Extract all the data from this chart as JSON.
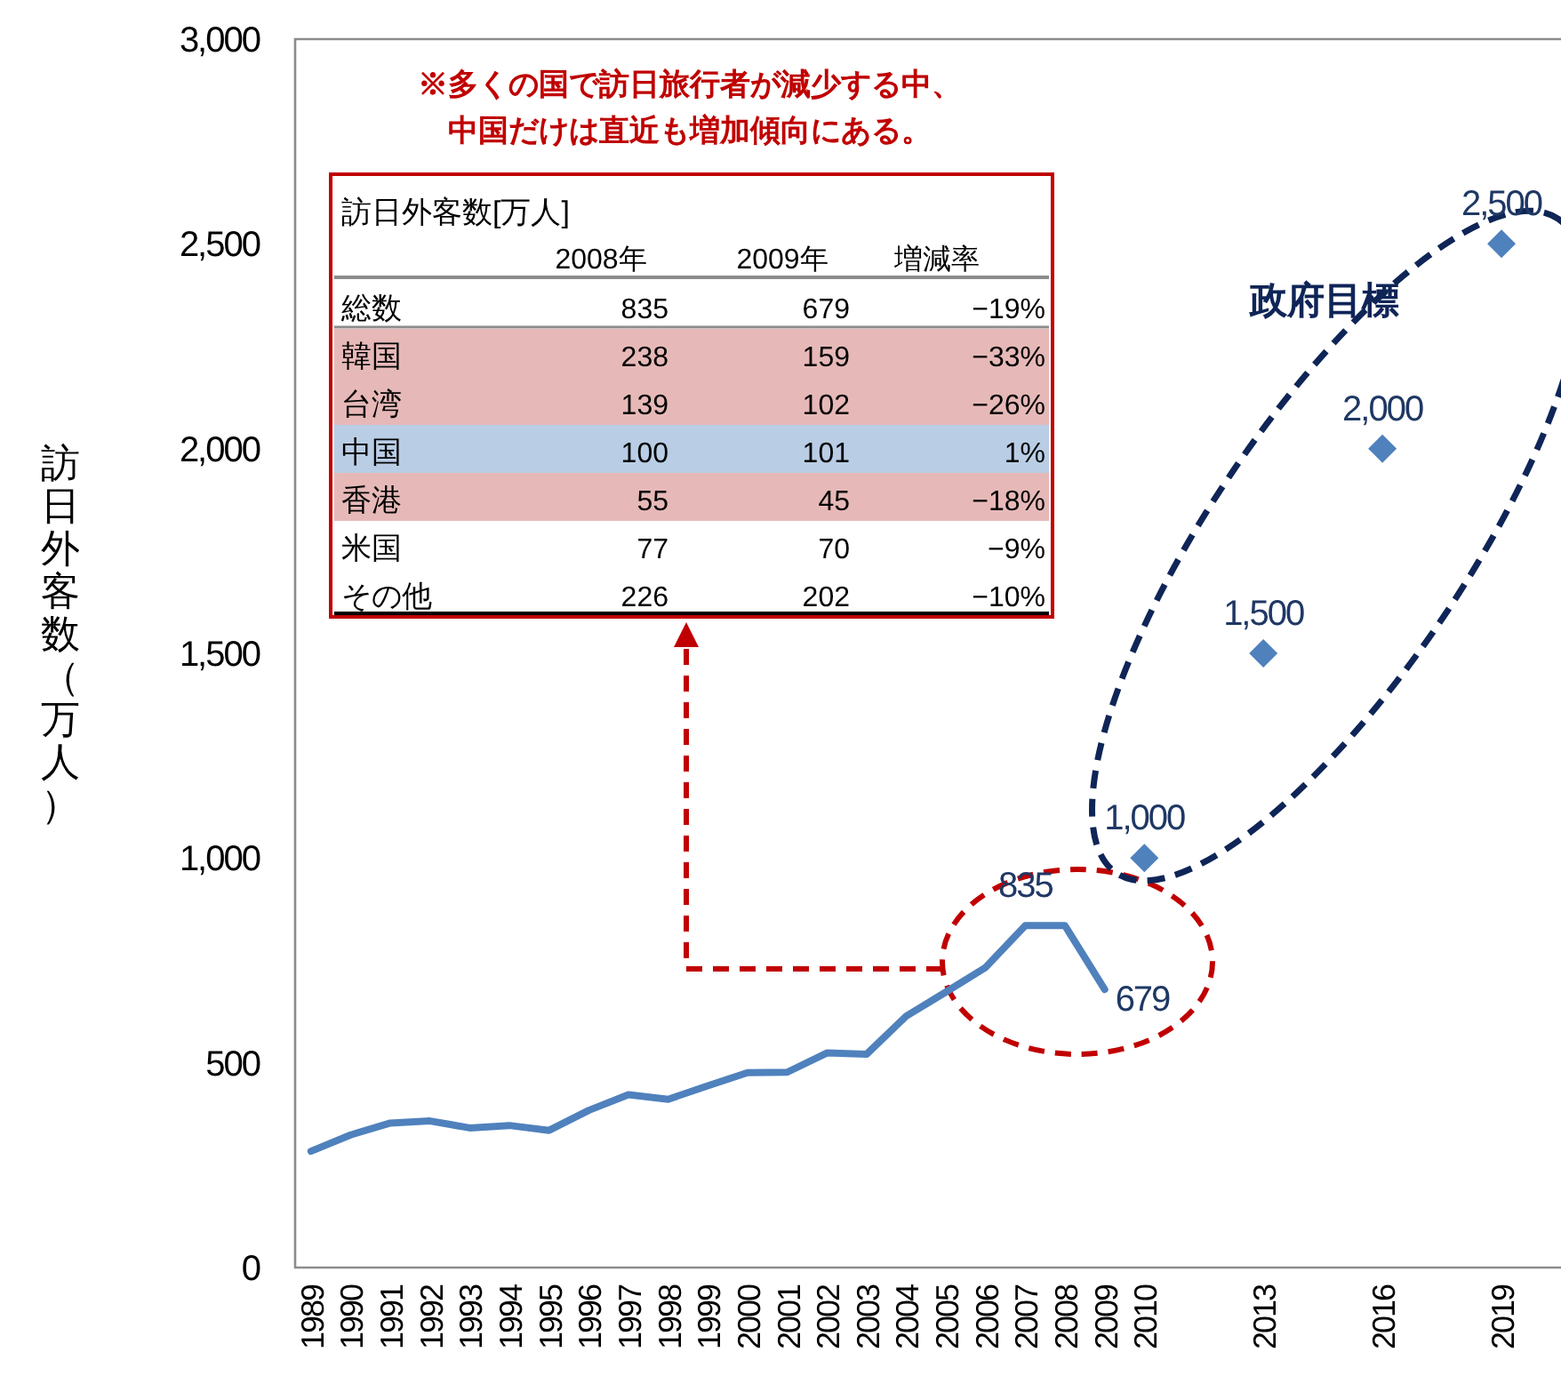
{
  "chart_data": {
    "type": "line",
    "ylabel": "訪日外客数（万人）",
    "xlim": [
      1988.6,
      2020.5
    ],
    "xticks": [
      1989,
      1990,
      1991,
      1992,
      1993,
      1994,
      1995,
      1996,
      1997,
      1998,
      1999,
      2000,
      2001,
      2002,
      2003,
      2004,
      2005,
      2006,
      2007,
      2008,
      2009,
      2010,
      2013,
      2016,
      2019
    ],
    "ylim": [
      0,
      3000
    ],
    "yticks": [
      0,
      500,
      {
        "value": 1000,
        "label": "1,000"
      },
      {
        "value": 1500,
        "label": "1,500"
      },
      {
        "value": 2000,
        "label": "2,000"
      },
      {
        "value": 2500,
        "label": "2,500"
      },
      {
        "value": 3000,
        "label": "3,000"
      }
    ],
    "series": [
      {
        "type": "line",
        "color": "#4f81bd",
        "x": [
          1989,
          1990,
          1991,
          1992,
          1993,
          1994,
          1995,
          1996,
          1997,
          1998,
          1999,
          2000,
          2001,
          2002,
          2003,
          2004,
          2005,
          2006,
          2007,
          2008,
          2009
        ],
        "values": [
          284,
          324,
          353,
          358,
          341,
          347,
          335,
          384,
          422,
          411,
          444,
          476,
          477,
          524,
          521,
          614,
          673,
          733,
          835,
          835,
          679
        ],
        "value_labels": [
          null,
          null,
          null,
          null,
          null,
          null,
          null,
          null,
          null,
          null,
          null,
          null,
          null,
          null,
          null,
          null,
          null,
          null,
          "835",
          null,
          "679"
        ]
      },
      {
        "type": "scatter",
        "marker": "diamond",
        "color": "#4f81bd",
        "x": [
          2010,
          2013,
          2016,
          2019
        ],
        "values": [
          1000,
          1500,
          2000,
          2500
        ],
        "value_labels": [
          "1,000",
          "1,500",
          "2,000",
          "2,500"
        ]
      }
    ],
    "annotations": [
      "※多くの国で訪日旅行者が減少する中、",
      "中国だけは直近も増加傾向にある。",
      "政府目標",
      "訪日外客数[万人]",
      "2008年",
      "2009年",
      "増減率",
      "総数",
      "835",
      "679",
      "−19%",
      "韓国",
      "238",
      "159",
      "−33%",
      "台湾",
      "139",
      "102",
      "−26%",
      "中国",
      "100",
      "101",
      "1%",
      "香港",
      "55",
      "45",
      "−18%",
      "米国",
      "77",
      "70",
      "−9%",
      "その他",
      "226",
      "202",
      "−10%"
    ]
  }
}
